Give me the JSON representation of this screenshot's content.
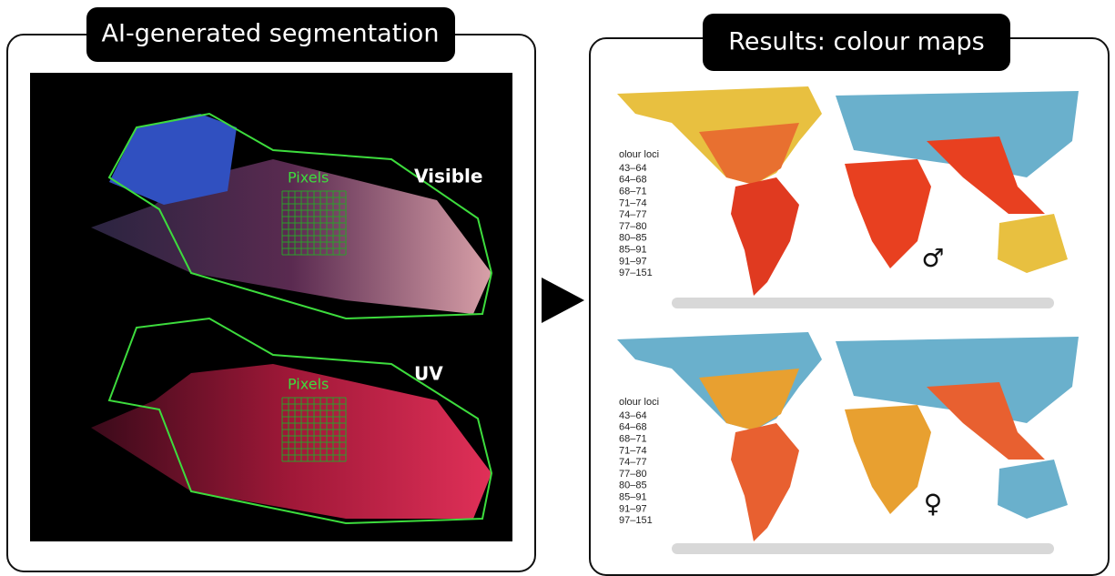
{
  "left_panel": {
    "title": "AI-generated segmentation",
    "visible_label": "Visible",
    "uv_label": "UV",
    "pixels_labels": [
      "Pixels",
      "Pixels"
    ]
  },
  "right_panel": {
    "title": "Results: colour maps",
    "maps": [
      {
        "legend_title": "olour loci",
        "legend": [
          "43–64",
          "64–68",
          "68–71",
          "71–74",
          "74–77",
          "77–80",
          "80–85",
          "85–91",
          "91–97",
          "97–151"
        ],
        "symbol": "♂"
      },
      {
        "legend_title": "olour loci",
        "legend": [
          "43–64",
          "64–68",
          "68–71",
          "71–74",
          "74–77",
          "77–80",
          "80–85",
          "85–91",
          "91–97",
          "97–151"
        ],
        "symbol": "♀"
      }
    ]
  }
}
